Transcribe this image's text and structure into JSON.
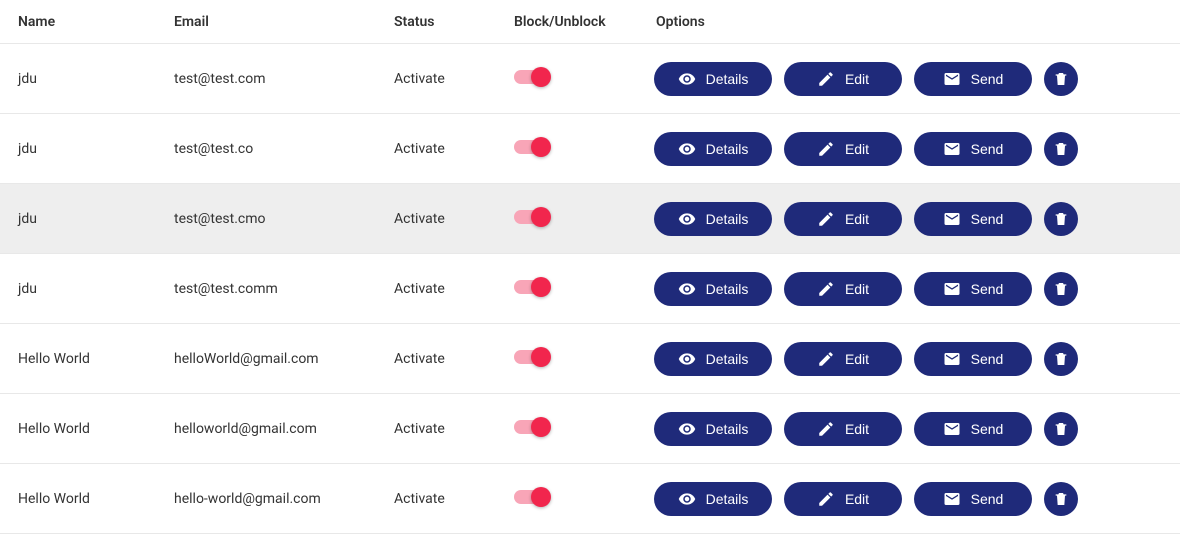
{
  "colors": {
    "button_bg": "#1f2a7a",
    "delete_bg": "#1f2a7a",
    "toggle_track_on": "#f8a5b7",
    "toggle_knob_on": "#f1264d",
    "row_hover_bg": "#eeeeee",
    "border": "#e8e8e8",
    "text": "#333333",
    "button_text": "#ffffff"
  },
  "columns": {
    "name": "Name",
    "email": "Email",
    "status": "Status",
    "block": "Block/Unblock",
    "options": "Options"
  },
  "buttons": {
    "details": "Details",
    "edit": "Edit",
    "send": "Send"
  },
  "rows": [
    {
      "name": "jdu",
      "email": "test@test.com",
      "status": "Activate",
      "blocked": true,
      "hovered": false
    },
    {
      "name": "jdu",
      "email": "test@test.co",
      "status": "Activate",
      "blocked": true,
      "hovered": false
    },
    {
      "name": "jdu",
      "email": "test@test.cmo",
      "status": "Activate",
      "blocked": true,
      "hovered": true
    },
    {
      "name": "jdu",
      "email": "test@test.comm",
      "status": "Activate",
      "blocked": true,
      "hovered": false
    },
    {
      "name": "Hello World",
      "email": "helloWorld@gmail.com",
      "status": "Activate",
      "blocked": true,
      "hovered": false
    },
    {
      "name": "Hello World",
      "email": "helloworld@gmail.com",
      "status": "Activate",
      "blocked": true,
      "hovered": false
    },
    {
      "name": "Hello World",
      "email": "hello-world@gmail.com",
      "status": "Activate",
      "blocked": true,
      "hovered": false
    }
  ]
}
